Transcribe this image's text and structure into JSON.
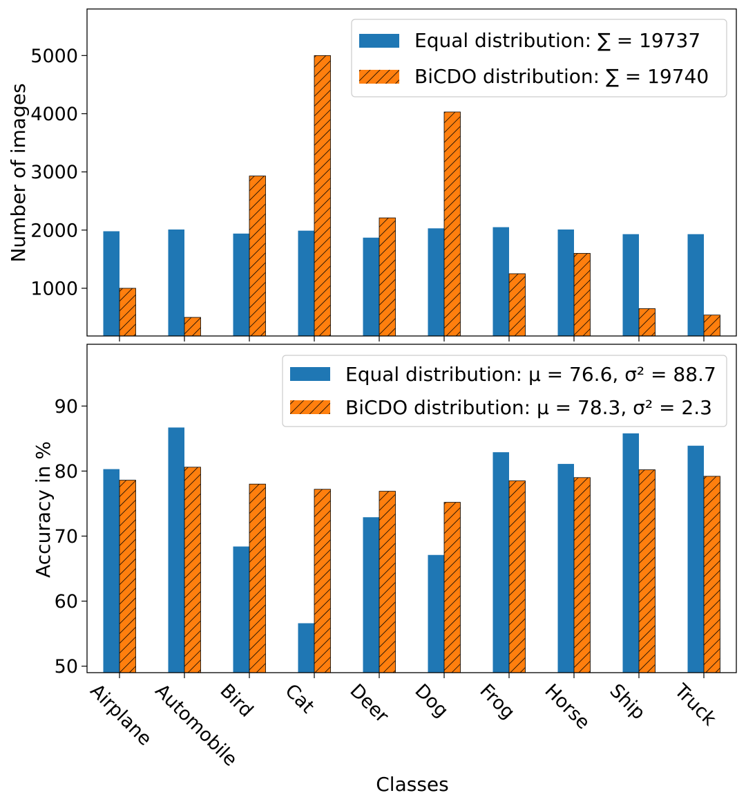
{
  "colors": {
    "equal": "#1f77b4",
    "bicdo": "#ff7f0e",
    "hatch": "#000000"
  },
  "chart_data": [
    {
      "type": "bar",
      "categories": [
        "Airplane",
        "Automobile",
        "Bird",
        "Cat",
        "Deer",
        "Dog",
        "Frog",
        "Horse",
        "Ship",
        "Truck"
      ],
      "ylabel": "Number of images",
      "xlabel": "",
      "ylim": [
        180,
        5800
      ],
      "yticks": [
        1000,
        2000,
        3000,
        4000,
        5000
      ],
      "ytick_labels": [
        "1000",
        "2000",
        "3000",
        "4000",
        "5000"
      ],
      "legend_position": "top-right",
      "series": [
        {
          "name": "Equal distribution",
          "legend_stat": "∑ = 19737",
          "values": [
            1980,
            2010,
            1940,
            1990,
            1870,
            2030,
            2050,
            2010,
            1930,
            1930
          ]
        },
        {
          "name": "BiCDO distribution",
          "legend_stat": "∑ = 19740",
          "values": [
            1000,
            500,
            2930,
            5000,
            2210,
            4030,
            1250,
            1600,
            650,
            540
          ]
        }
      ]
    },
    {
      "type": "bar",
      "categories": [
        "Airplane",
        "Automobile",
        "Bird",
        "Cat",
        "Deer",
        "Dog",
        "Frog",
        "Horse",
        "Ship",
        "Truck"
      ],
      "ylabel": "Accuracy in %",
      "xlabel": "Classes",
      "ylim": [
        49,
        99.5
      ],
      "yticks": [
        50,
        60,
        70,
        80,
        90
      ],
      "ytick_labels": [
        "50",
        "60",
        "70",
        "80",
        "90"
      ],
      "legend_position": "top-right",
      "series": [
        {
          "name": "Equal distribution",
          "legend_stat": "μ = 76.6, σ² = 88.7",
          "values": [
            80.3,
            86.7,
            68.4,
            56.6,
            72.9,
            67.1,
            82.9,
            81.1,
            85.8,
            83.9
          ]
        },
        {
          "name": "BiCDO distribution",
          "legend_stat": "μ = 78.3, σ² = 2.3",
          "values": [
            78.6,
            80.6,
            78.0,
            77.2,
            76.9,
            75.2,
            78.5,
            79.0,
            80.2,
            79.2
          ]
        }
      ]
    }
  ]
}
